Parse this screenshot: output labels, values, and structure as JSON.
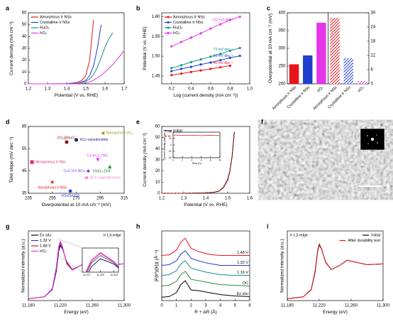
{
  "chart_data": [
    {
      "label": "a",
      "type": "line",
      "xlabel": "Potential (V vs. RHE)",
      "ylabel": "Current density (mA cm⁻²)",
      "xlim": [
        1.2,
        1.7
      ],
      "xticks": [
        1.2,
        1.3,
        1.4,
        1.5,
        1.6,
        1.7
      ],
      "ylim": [
        0,
        60
      ],
      "yticks": [
        0,
        10,
        20,
        30,
        40,
        50,
        60
      ],
      "legend": "upper left",
      "x": [
        1.2,
        1.3,
        1.4,
        1.45,
        1.48,
        1.5,
        1.52,
        1.54,
        1.56,
        1.58,
        1.6,
        1.62,
        1.64,
        1.66,
        1.68,
        1.7
      ],
      "series": [
        {
          "name": "Amorphous Ir NSs",
          "color": "#e8141c",
          "values": [
            0,
            0,
            0.2,
            1,
            3,
            7,
            20,
            54,
            null,
            null,
            null,
            null,
            null,
            null,
            null,
            null
          ]
        },
        {
          "name": "Crystalline Ir NSs",
          "color": "#1f3fcf",
          "values": [
            0,
            0,
            0.1,
            0.5,
            1.5,
            3,
            7,
            15,
            30,
            50,
            null,
            null,
            null,
            null,
            null,
            null
          ]
        },
        {
          "name": "RuO₂",
          "color": "#14928a",
          "values": [
            0,
            0,
            0,
            0.3,
            1,
            2,
            4,
            8,
            14,
            22,
            31,
            38,
            43,
            null,
            null,
            null
          ]
        },
        {
          "name": "IrO₂",
          "color": "#e535e8",
          "values": [
            0,
            0,
            0,
            0,
            0.3,
            0.7,
            1.5,
            3,
            5,
            7,
            10,
            13,
            16,
            20,
            24,
            28
          ]
        }
      ]
    },
    {
      "label": "b",
      "type": "line",
      "markers": true,
      "xlabel": "Log (current density (mA cm⁻²))",
      "ylabel": "Potential (V vs. RHE)",
      "xlim": [
        0.1,
        1.0
      ],
      "xticks": [
        0.2,
        0.4,
        0.6,
        0.8,
        {
          "value": 1,
          "label": "1.0"
        }
      ],
      "ylim": [
        1.43,
        1.61
      ],
      "yticks": [
        1.45,
        {
          "value": 1.5,
          "label": "1.50"
        },
        1.55,
        {
          "value": 1.6,
          "label": "1.60"
        }
      ],
      "legend": "upper left",
      "x": [
        0.2,
        0.3,
        0.4,
        0.5,
        0.6,
        0.7,
        0.8,
        0.9
      ],
      "series": [
        {
          "name": "Amorphous Ir NSs",
          "color": "#e8141c",
          "slope_label": "40 mV dec⁻¹",
          "values": [
            1.452,
            1.456,
            1.46,
            1.464,
            1.468,
            1.472,
            1.476,
            null
          ]
        },
        {
          "name": "Crystalline Ir NSs",
          "color": "#1f3fcf",
          "slope_label": "56 mV dec⁻¹",
          "values": [
            1.462,
            1.468,
            1.473,
            1.479,
            1.484,
            1.49,
            1.496,
            1.501
          ]
        },
        {
          "name": "RuO₂",
          "color": "#14928a",
          "slope_label": "73 mV dec⁻¹",
          "values": [
            1.47,
            1.477,
            1.485,
            1.492,
            1.499,
            1.506,
            1.514,
            1.521
          ]
        },
        {
          "name": "IrO₂",
          "color": "#e535e8",
          "slope_label": "112 mV dec⁻¹",
          "values": [
            1.525,
            1.536,
            1.547,
            1.558,
            1.57,
            1.581,
            1.592,
            1.6
          ]
        }
      ]
    },
    {
      "label": "c",
      "type": "bar",
      "ylabel": "Overpotential at 10 mA cm⁻² (mV)",
      "ylim": [
        200,
        400
      ],
      "yticks": [
        200,
        250,
        300,
        350,
        400
      ],
      "y2lim": [
        0,
        30
      ],
      "y2ticks": [
        0,
        6,
        12,
        18,
        24,
        30
      ],
      "categories": [
        "Amorphous Ir NSs",
        "Crystalline Ir NSs",
        "IrO₂",
        "Amorphous Ir NSs",
        "Crystalline Ir NSs",
        "IrO₂"
      ],
      "colors": [
        "#e8141c",
        "#1f3fcf",
        "#e535e8",
        "#e8141c",
        "#1f3fcf",
        "#e535e8"
      ],
      "series": [
        {
          "values": [
            255,
            280,
            372,
            null,
            null,
            null
          ]
        },
        {
          "axis": "y2",
          "hatch": true,
          "values": [
            null,
            null,
            null,
            27.8,
            10.8,
            1.2
          ]
        }
      ]
    },
    {
      "label": "d",
      "type": "scatter",
      "xlabel": "Overpotential at 10 mA cm⁻² (mV)",
      "ylabel": "Tafel slope (mV dec⁻¹)",
      "xlim": [
        235,
        315
      ],
      "xticks": [
        235,
        255,
        275,
        295,
        315
      ],
      "ylim": [
        35,
        65
      ],
      "yticks": [
        35,
        45,
        55,
        65
      ],
      "points": [
        {
          "label": "Nanoporous IrO₂",
          "x": 297,
          "y": 62,
          "color": "#9a9a1a",
          "marker": "triangle-left"
        },
        {
          "label": "IrCo nanodendrite",
          "x": 275,
          "y": 59,
          "color": "#1a237e",
          "marker": "circle"
        },
        {
          "label": "IrO₂@RuO₂",
          "x": 267,
          "y": 58,
          "color": "#8b1a1a",
          "marker": "circle"
        },
        {
          "label": "Mesoporous Ir NSs",
          "x": 238,
          "y": 49,
          "color": "#e0307a",
          "marker": "square"
        },
        {
          "label": "Co-IrCu ONC",
          "x": 293,
          "y": 50,
          "color": "#e535e8",
          "marker": "triangle-down"
        },
        {
          "label": "IrNiCu DNF",
          "x": 303,
          "y": 47,
          "color": "#2e8b3a",
          "marker": "triangle-up"
        },
        {
          "label": "Cu1.11Ir NCs",
          "x": 285,
          "y": 45,
          "color": "#8a3fe0",
          "marker": "diamond"
        },
        {
          "label": "3D Ir superstructure",
          "x": 283,
          "y": 42,
          "color": "#ff77cc",
          "marker": "triangle-left"
        },
        {
          "label": "Amorphous Ir NSs",
          "x": 255,
          "y": 40,
          "color": "#e8141c",
          "marker": "star"
        },
        {
          "label": "IrOx/SrIrO3",
          "x": 270,
          "y": 36,
          "color": "#1f3fcf",
          "marker": "hexagon"
        }
      ]
    },
    {
      "label": "e",
      "type": "line",
      "xlabel": "Potential (V vs. RHE)",
      "ylabel": "Current density (mA cm⁻²)",
      "xlim": [
        1.2,
        1.6
      ],
      "xticks": [
        1.2,
        1.3,
        1.4,
        1.5,
        1.6
      ],
      "ylim": [
        0,
        60
      ],
      "yticks": [
        0,
        10,
        20,
        30,
        40,
        50,
        60
      ],
      "legend": "upper left",
      "x": [
        1.2,
        1.3,
        1.4,
        1.44,
        1.46,
        1.48,
        1.5,
        1.51,
        1.52,
        1.53
      ],
      "series": [
        {
          "name": "Initial",
          "color": "#000000",
          "values": [
            0,
            0,
            0.3,
            1,
            2,
            5,
            12,
            20,
            33,
            55
          ]
        },
        {
          "name": "After 5000 cycles",
          "color": "#e8141c",
          "dash": true,
          "values": [
            0,
            0,
            0.3,
            1,
            2.2,
            5.5,
            13,
            21,
            34,
            53
          ]
        }
      ],
      "inset": {
        "xlabel": "Time (h)",
        "ylabel": "Current density (mA cm⁻²)",
        "xlim": [
          0,
          10
        ],
        "xticks": [
          0,
          2,
          4,
          6,
          8,
          10
        ],
        "ylim": [
          -40,
          40
        ],
        "yticks": [
          -40,
          -20,
          0,
          20,
          40
        ],
        "x": [
          0,
          2,
          4,
          6,
          8,
          10
        ],
        "series": [
          {
            "color": "#e8141c",
            "values": [
              31,
              30,
              30,
              29,
              30,
              29
            ]
          }
        ]
      }
    },
    {
      "label": "f",
      "type": "image",
      "scale_label": "2 nm"
    },
    {
      "label": "g",
      "type": "line",
      "title": "Ir L3-edge",
      "xlabel": "Energy (eV)",
      "ylabel": "Normalized intensity (a.u.)",
      "xlim": [
        11180,
        11300
      ],
      "xticks": [
        {
          "value": 11180,
          "label": "11,180"
        },
        {
          "value": 11220,
          "label": "11,220"
        },
        {
          "value": 11260,
          "label": "11,260"
        },
        {
          "value": 11300,
          "label": "11,300"
        }
      ],
      "ylim": [
        0,
        1.9
      ],
      "legend": "upper left",
      "x": [
        11180,
        11200,
        11210,
        11215,
        11218,
        11220,
        11223,
        11228,
        11235,
        11245,
        11255,
        11265,
        11280,
        11300
      ],
      "series": [
        {
          "name": "Ex situ",
          "color": "#000000",
          "values": [
            0.05,
            0.1,
            0.3,
            0.8,
            1.35,
            1.5,
            1.4,
            1.05,
            0.85,
            0.95,
            1.1,
            1.05,
            0.98,
            1.0
          ]
        },
        {
          "name": "1.32 V",
          "color": "#1f3fcf",
          "values": [
            0.05,
            0.1,
            0.3,
            0.85,
            1.42,
            1.56,
            1.42,
            1.03,
            0.84,
            0.95,
            1.1,
            1.05,
            0.98,
            1.0
          ]
        },
        {
          "name": "1.48 V",
          "color": "#e8141c",
          "values": [
            0.05,
            0.1,
            0.32,
            0.9,
            1.45,
            1.6,
            1.44,
            1.02,
            0.84,
            0.95,
            1.1,
            1.05,
            0.98,
            1.0
          ]
        },
        {
          "name": "IrO₂",
          "color": "#e535e8",
          "values": [
            0.05,
            0.1,
            0.33,
            0.92,
            1.48,
            1.62,
            1.45,
            1.0,
            0.83,
            0.95,
            1.1,
            1.05,
            0.98,
            1.0
          ]
        }
      ],
      "inset": {
        "xlim": [
          11216,
          11224
        ],
        "xticks": [
          {
            "value": 11217,
            "label": "11,217"
          },
          {
            "value": 11220,
            "label": "11,220"
          },
          {
            "value": 11223,
            "label": "11,223"
          }
        ],
        "ylim": [
          1.25,
          1.7
        ]
      }
    },
    {
      "label": "h",
      "type": "line",
      "xlabel": "R + ΔR (Å)",
      "ylabel": "|F(k³χ(k))| (Å⁻⁴)",
      "xlim": [
        0,
        6
      ],
      "xticks": [
        0,
        1,
        2,
        3,
        4,
        5,
        6
      ],
      "ylim": [
        0,
        10.5
      ],
      "legend": "inline",
      "x": [
        0,
        0.5,
        1,
        1.3,
        1.6,
        2,
        2.5,
        3,
        3.5,
        4,
        5,
        6
      ],
      "series": [
        {
          "name": "Ex situ",
          "color": "#000000",
          "values": [
            0.5,
            0.6,
            1.2,
            2.4,
            3.0,
            1.6,
            1.5,
            1.3,
            1.1,
            0.9,
            0.7,
            0.6
          ]
        },
        {
          "name": "OC",
          "color": "#2e8b3a",
          "values": [
            2.2,
            2.3,
            2.9,
            3.9,
            4.4,
            3.2,
            3.0,
            2.8,
            2.6,
            2.4,
            2.3,
            2.2
          ]
        },
        {
          "name": "1.16 V",
          "color": "#14928a",
          "values": [
            3.8,
            3.9,
            4.5,
            5.5,
            6.0,
            4.9,
            4.6,
            4.3,
            4.1,
            3.9,
            3.8,
            3.8
          ]
        },
        {
          "name": "1.32 V",
          "color": "#1f3fcf",
          "values": [
            5.3,
            5.4,
            6.0,
            7.0,
            7.5,
            6.4,
            6.0,
            5.7,
            5.5,
            5.3,
            5.3,
            5.3
          ]
        },
        {
          "name": "1.48 V",
          "color": "#e8141c",
          "values": [
            6.8,
            6.9,
            7.6,
            8.8,
            9.4,
            7.9,
            7.4,
            7.1,
            6.9,
            6.8,
            6.8,
            6.8
          ]
        }
      ]
    },
    {
      "label": "i",
      "type": "line",
      "title": "Ir L3-edge",
      "xlabel": "Energy (eV)",
      "ylabel": "Normalized intensity (a.u.)",
      "xlim": [
        11180,
        11300
      ],
      "xticks": [
        {
          "value": 11180,
          "label": "11,180"
        },
        {
          "value": 11220,
          "label": "11,220"
        },
        {
          "value": 11260,
          "label": "11,260"
        },
        {
          "value": 11300,
          "label": "11,300"
        }
      ],
      "ylim": [
        0,
        1.9
      ],
      "legend": "upper right",
      "x": [
        11180,
        11200,
        11210,
        11215,
        11218,
        11220,
        11223,
        11228,
        11235,
        11245,
        11255,
        11265,
        11280,
        11300
      ],
      "series": [
        {
          "name": "Initial",
          "color": "#000000",
          "values": [
            0.05,
            0.1,
            0.3,
            0.8,
            1.35,
            1.52,
            1.4,
            1.05,
            0.85,
            0.95,
            1.1,
            1.05,
            0.98,
            1.0
          ]
        },
        {
          "name": "After durability test",
          "color": "#e8141c",
          "values": [
            0.05,
            0.1,
            0.31,
            0.84,
            1.38,
            1.55,
            1.41,
            1.04,
            0.85,
            0.95,
            1.1,
            1.05,
            0.98,
            1.0
          ]
        }
      ]
    }
  ]
}
